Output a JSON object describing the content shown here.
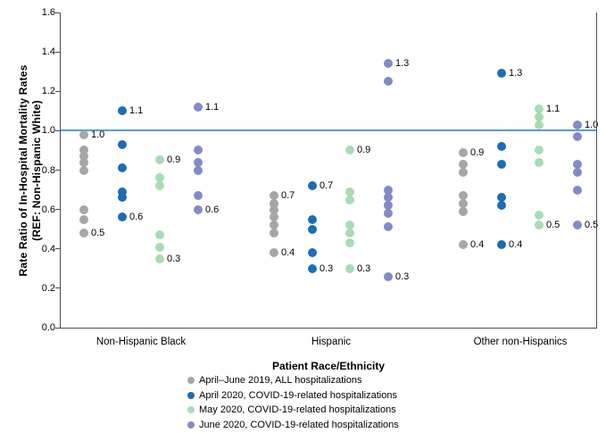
{
  "chart_data": {
    "type": "scatter",
    "title": "",
    "xlabel": "Patient Race/Ethnicity",
    "ylabel_line1": "Rate Ratio of In-Hospital Mortality Rates",
    "ylabel_line2": "(REF: Non-Hispanic White)",
    "ylim": [
      0.0,
      1.6
    ],
    "yticks": [
      "0.0",
      "0.2",
      "0.4",
      "0.6",
      "0.8",
      "1.0",
      "1.2",
      "1.4",
      "1.6"
    ],
    "grid": "off",
    "legend_position": "bottom",
    "reference_line": 1.0,
    "reference_line_color": "#5B9BD5",
    "categories": [
      "Non-Hispanic Black",
      "Hispanic",
      "Other non-Hispanics"
    ],
    "series": [
      {
        "name": "April–June 2019, ALL hospitalizations",
        "color": "#A6A6A6",
        "groups": [
          {
            "category": "Non-Hispanic Black",
            "values": [
              0.98,
              0.9,
              0.87,
              0.84,
              0.8,
              0.6,
              0.55,
              0.48
            ],
            "label_max": "1.0",
            "label_min": "0.5"
          },
          {
            "category": "Hispanic",
            "values": [
              0.67,
              0.63,
              0.6,
              0.56,
              0.52,
              0.48,
              0.38
            ],
            "label_max": "0.7",
            "label_min": "0.4"
          },
          {
            "category": "Other non-Hispanics",
            "values": [
              0.89,
              0.83,
              0.79,
              0.67,
              0.63,
              0.59,
              0.42
            ],
            "label_max": "0.9",
            "label_min": "0.4"
          }
        ]
      },
      {
        "name": "April 2020, COVID-19-related hospitalizations",
        "color": "#1F6CB4",
        "groups": [
          {
            "category": "Non-Hispanic Black",
            "values": [
              1.1,
              0.93,
              0.81,
              0.69,
              0.66,
              0.56
            ],
            "label_max": "1.1",
            "label_min": "0.6"
          },
          {
            "category": "Hispanic",
            "values": [
              0.72,
              0.55,
              0.5,
              0.38,
              0.3
            ],
            "label_max": "0.7",
            "label_min": "0.3"
          },
          {
            "category": "Other non-Hispanics",
            "values": [
              1.29,
              0.92,
              0.83,
              0.66,
              0.62,
              0.42
            ],
            "label_max": "1.3",
            "label_min": "0.4"
          }
        ]
      },
      {
        "name": "May 2020, COVID-19-related hospitalizations",
        "color": "#A9DBB5",
        "groups": [
          {
            "category": "Non-Hispanic Black",
            "values": [
              0.85,
              0.76,
              0.72,
              0.47,
              0.41,
              0.35
            ],
            "label_max": "0.9",
            "label_min": "0.3"
          },
          {
            "category": "Hispanic",
            "values": [
              0.9,
              0.69,
              0.65,
              0.52,
              0.48,
              0.43,
              0.3
            ],
            "label_max": "0.9",
            "label_min": "0.3"
          },
          {
            "category": "Other non-Hispanics",
            "values": [
              1.11,
              1.07,
              1.03,
              0.9,
              0.84,
              0.57,
              0.52
            ],
            "label_max": "1.1",
            "label_min": "0.5"
          }
        ]
      },
      {
        "name": "June 2020, COVID-19-related hospitalizations",
        "color": "#8489C8",
        "groups": [
          {
            "category": "Non-Hispanic Black",
            "values": [
              1.12,
              0.9,
              0.84,
              0.8,
              0.67,
              0.6
            ],
            "label_max": "1.1",
            "label_min": "0.6"
          },
          {
            "category": "Hispanic",
            "values": [
              1.34,
              1.25,
              0.7,
              0.66,
              0.62,
              0.58,
              0.51,
              0.26
            ],
            "label_max": "1.3",
            "label_min": "0.3"
          },
          {
            "category": "Other non-Hispanics",
            "values": [
              1.03,
              0.97,
              0.83,
              0.79,
              0.7,
              0.52
            ],
            "label_max": "1.0",
            "label_min": "0.5"
          }
        ]
      }
    ]
  }
}
